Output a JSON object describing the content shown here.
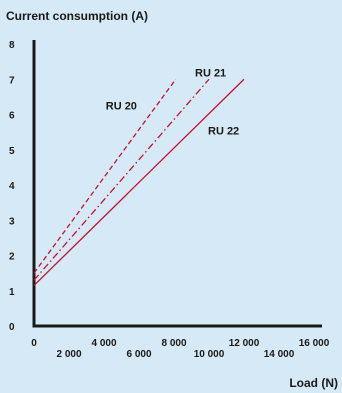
{
  "chart_data": {
    "type": "line",
    "title": "Current consumption (A)",
    "xlabel": "Load (N)",
    "ylabel": "",
    "xlim": [
      0,
      16000
    ],
    "ylim": [
      0,
      8
    ],
    "grid": false,
    "legend": "none",
    "x_ticks": [
      {
        "value": 0,
        "label": "0"
      },
      {
        "value": 2000,
        "label": "2 000"
      },
      {
        "value": 4000,
        "label": "4 000"
      },
      {
        "value": 6000,
        "label": "6 000"
      },
      {
        "value": 8000,
        "label": "8 000"
      },
      {
        "value": 10000,
        "label": "10 000"
      },
      {
        "value": 12000,
        "label": "12 000"
      },
      {
        "value": 14000,
        "label": "14 000"
      },
      {
        "value": 16000,
        "label": "16 000"
      }
    ],
    "y_ticks": [
      {
        "value": 0,
        "label": "0"
      },
      {
        "value": 1,
        "label": "1"
      },
      {
        "value": 2,
        "label": "2"
      },
      {
        "value": 3,
        "label": "3"
      },
      {
        "value": 4,
        "label": "4"
      },
      {
        "value": 5,
        "label": "5"
      },
      {
        "value": 6,
        "label": "6"
      },
      {
        "value": 7,
        "label": "7"
      },
      {
        "value": 8,
        "label": "8"
      }
    ],
    "series": [
      {
        "name": "RU 20",
        "style": "dashed",
        "color": "#c8102e",
        "x": [
          0,
          8100
        ],
        "y": [
          1.5,
          7.0
        ]
      },
      {
        "name": "RU 21",
        "style": "dashdot",
        "color": "#c8102e",
        "x": [
          0,
          10000
        ],
        "y": [
          1.3,
          7.0
        ]
      },
      {
        "name": "RU 22",
        "style": "solid",
        "color": "#c8102e",
        "x": [
          0,
          12000
        ],
        "y": [
          1.15,
          7.0
        ]
      }
    ],
    "axis_color": "#1a1a1a"
  }
}
